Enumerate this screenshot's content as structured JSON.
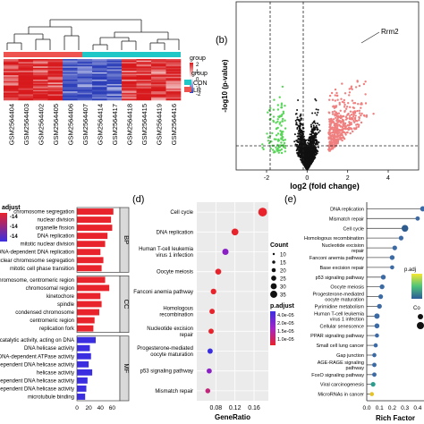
{
  "figure": {
    "panels": [
      {
        "letter": "(b)"
      },
      {
        "letter": "(d)"
      },
      {
        "letter": "(e)"
      }
    ]
  },
  "chart_data": [
    {
      "type": "heatmap",
      "legend": {
        "title": "group",
        "items": [
          {
            "label": "CON",
            "color": "#1fc7c7"
          },
          {
            "label": "LR",
            "color": "#ef5350"
          }
        ],
        "colorbar_ticks": [
          "2",
          "1",
          "0",
          "-1",
          "-2"
        ],
        "colorbar_colors": [
          "#d7191c",
          "#ffffff",
          "#2c3fb8"
        ]
      },
      "columns": [
        "GSM2564404",
        "GSM2564403",
        "GSM2564402",
        "GSM2564405",
        "GSM2564406",
        "GSM2564407",
        "GSM2564414",
        "GSM2564417",
        "GSM2564418",
        "GSM2564415",
        "GSM2564419",
        "GSM2564416"
      ],
      "column_groups": [
        "CON",
        "CON",
        "CON",
        "CON",
        "CON",
        "LR",
        "LR",
        "LR",
        "LR",
        "LR",
        "LR",
        "LR"
      ]
    },
    {
      "type": "scatter",
      "xlabel": "log2 (fold change)",
      "ylabel": "-log10 (p-value)",
      "xticks": [
        "-2",
        "0",
        "2",
        "4"
      ],
      "xlim": [
        -3.5,
        5.5
      ],
      "ylim": [
        0,
        12
      ],
      "annotation": "Rrm2",
      "colors": {
        "down": "#5ad65a",
        "ns": "#111111",
        "up": "#f08080"
      },
      "thresholds": {
        "fc": [
          -1,
          1
        ]
      }
    },
    {
      "type": "bar",
      "orientation": "horizontal",
      "legend_title": "adjust",
      "legend_ticks": [
        "-14",
        "-14",
        "-14"
      ],
      "xticks": [
        "0",
        "20",
        "40",
        "60"
      ],
      "xlim": [
        0,
        70
      ],
      "groups": [
        {
          "name": "BP",
          "items": [
            {
              "label": "chromosome segregation",
              "value": 62
            },
            {
              "label": "nuclear division",
              "value": 58
            },
            {
              "label": "organelle fission",
              "value": 60
            },
            {
              "label": "DNA replication",
              "value": 52
            },
            {
              "label": "mitotic nuclear division",
              "value": 48
            },
            {
              "label": "DNA-dependent DNA replication",
              "value": 40
            },
            {
              "label": "nuclear chromosome segregation",
              "value": 45
            },
            {
              "label": "mitotic cell phase transition",
              "value": 42
            }
          ]
        },
        {
          "name": "CC",
          "items": [
            {
              "label": "chromosome, centromeric region",
              "value": 48
            },
            {
              "label": "chromosomal region",
              "value": 55
            },
            {
              "label": "kinetochore",
              "value": 40
            },
            {
              "label": "spindle",
              "value": 42
            },
            {
              "label": "condensed chromosome",
              "value": 38
            },
            {
              "label": "centromeric region",
              "value": 30
            },
            {
              "label": "replication fork",
              "value": 28
            }
          ]
        },
        {
          "name": "MF",
          "items": [
            {
              "label": "catalytic activity, acting on DNA",
              "value": 32
            },
            {
              "label": "DNA helicase activity",
              "value": 22
            },
            {
              "label": "DNA-dependent ATPase activity",
              "value": 24
            },
            {
              "label": "dependent DNA helicase activity",
              "value": 20
            },
            {
              "label": "helicase activity",
              "value": 26
            },
            {
              "label": "dependent DNA helicase activity",
              "value": 18
            },
            {
              "label": "TP-dependent DNA helicase activity",
              "value": 16
            },
            {
              "label": "microtubule binding",
              "value": 14
            }
          ]
        }
      ]
    },
    {
      "type": "scatter",
      "xlabel": "GeneRatio",
      "xticks": [
        "0.08",
        "0.12",
        "0.16"
      ],
      "xlim": [
        0.04,
        0.19
      ],
      "categories": [
        "Cell cycle",
        "DNA replication",
        "Human T-cell leukemia virus 1 infection",
        "Oocyte meiosis",
        "Fanconi anemia pathway",
        "Homologous recombination",
        "Nucleotide excision repair",
        "Progesterone-mediated oocyte maturation",
        "p53 signaling pathway",
        "Mismatch repair"
      ],
      "x": [
        0.178,
        0.12,
        0.1,
        0.085,
        0.075,
        0.072,
        0.07,
        0.068,
        0.066,
        0.063
      ],
      "count": [
        40,
        20,
        15,
        12,
        10,
        8,
        8,
        8,
        7,
        6
      ],
      "p_adjust": [
        1e-15,
        1e-15,
        5e-05,
        1e-15,
        1e-15,
        1e-15,
        1e-15,
        4e-05,
        5e-05,
        2e-05
      ],
      "size_legend_title": "Count",
      "size_legend": [
        "10",
        "15",
        "20",
        "25",
        "30",
        "35"
      ],
      "color_legend_title": "p.adjust",
      "color_legend": [
        "4.0e-05",
        "2.0e-05",
        "1.5e-05",
        "1.0e-05"
      ]
    },
    {
      "type": "scatter",
      "xlabel": "Rich Factor",
      "xticks": [
        "0.0",
        "0.1",
        "0.2",
        "0.3",
        "0.4"
      ],
      "xlim": [
        0,
        0.45
      ],
      "categories": [
        "DNA replication",
        "Mismatch repair",
        "Cell cycle",
        "Homologous recombination",
        "Nucleotide excision repair",
        "Fanconi anemia pathway",
        "Base excision repair",
        "p53 signaling pathway",
        "Oocyte meiosis",
        "Progesterone-mediated oocyte maturation",
        "Pyrimidine metabolism",
        "Human T-cell leukemia virus 1 infection",
        "Cellular senescence",
        "PPAR signaling pathway",
        "Small cell lung cancer",
        "Gap junction",
        "AGE-RAGE signaling pathway",
        "FoxO signaling pathway",
        "Viral carcinogenesis",
        "MicroRNAs in cancer"
      ],
      "x": [
        0.44,
        0.4,
        0.3,
        0.27,
        0.22,
        0.2,
        0.2,
        0.13,
        0.12,
        0.11,
        0.1,
        0.08,
        0.08,
        0.08,
        0.07,
        0.06,
        0.06,
        0.06,
        0.05,
        0.04
      ],
      "size": [
        12,
        6,
        26,
        8,
        8,
        9,
        5,
        9,
        9,
        8,
        9,
        13,
        10,
        5,
        5,
        5,
        6,
        6,
        8,
        5
      ],
      "point_color": [
        "#3c6aa5",
        "#3c6aa5",
        "#2e5c8f",
        "#3c6aa5",
        "#3c6aa5",
        "#3c6aa5",
        "#3c6aa5",
        "#3c6aa5",
        "#3c6aa5",
        "#3c6aa5",
        "#3c6aa5",
        "#3c6aa5",
        "#3c6aa5",
        "#3c6aa5",
        "#3c6aa5",
        "#3c6aa5",
        "#3c6aa5",
        "#3c6aa5",
        "#2a9d8f",
        "#e6c229"
      ],
      "color_legend_title": "p.adj",
      "size_legend_title": "Co"
    }
  ]
}
